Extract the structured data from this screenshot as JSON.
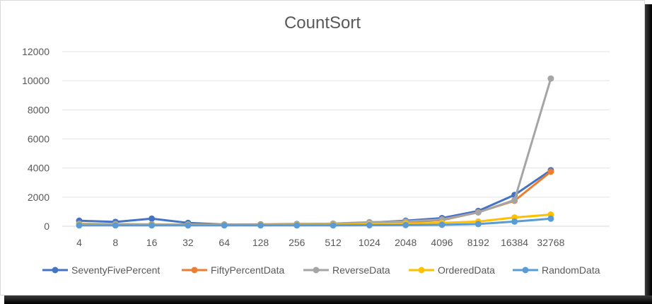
{
  "chart_data": {
    "type": "line",
    "title": "CountSort",
    "xlabel": "",
    "ylabel": "",
    "categories": [
      "4",
      "8",
      "16",
      "32",
      "64",
      "128",
      "256",
      "512",
      "1024",
      "2048",
      "4096",
      "8192",
      "16384",
      "32768"
    ],
    "yticks": [
      0,
      2000,
      4000,
      6000,
      8000,
      10000,
      12000
    ],
    "ylim": [
      0,
      12000
    ],
    "grid": "horizontal",
    "legend": "bottom",
    "series": [
      {
        "name": "SeventyFivePercent",
        "color": "#4472C4",
        "values": [
          380,
          300,
          520,
          230,
          120,
          130,
          150,
          170,
          250,
          380,
          560,
          1050,
          2150,
          3850
        ]
      },
      {
        "name": "FiftyPercentData",
        "color": "#ED7D31",
        "values": [
          160,
          130,
          130,
          110,
          110,
          110,
          120,
          130,
          200,
          280,
          420,
          960,
          1750,
          3750
        ]
      },
      {
        "name": "ReverseData",
        "color": "#A5A5A5",
        "values": [
          170,
          150,
          130,
          120,
          110,
          110,
          130,
          180,
          280,
          330,
          460,
          950,
          1800,
          10150
        ]
      },
      {
        "name": "OrderedData",
        "color": "#FFC000",
        "values": [
          90,
          80,
          80,
          80,
          70,
          80,
          90,
          100,
          140,
          180,
          230,
          320,
          600,
          800
        ]
      },
      {
        "name": "RandomData",
        "color": "#5B9BD5",
        "values": [
          60,
          60,
          60,
          60,
          60,
          60,
          60,
          60,
          70,
          80,
          100,
          150,
          320,
          520
        ]
      }
    ]
  }
}
